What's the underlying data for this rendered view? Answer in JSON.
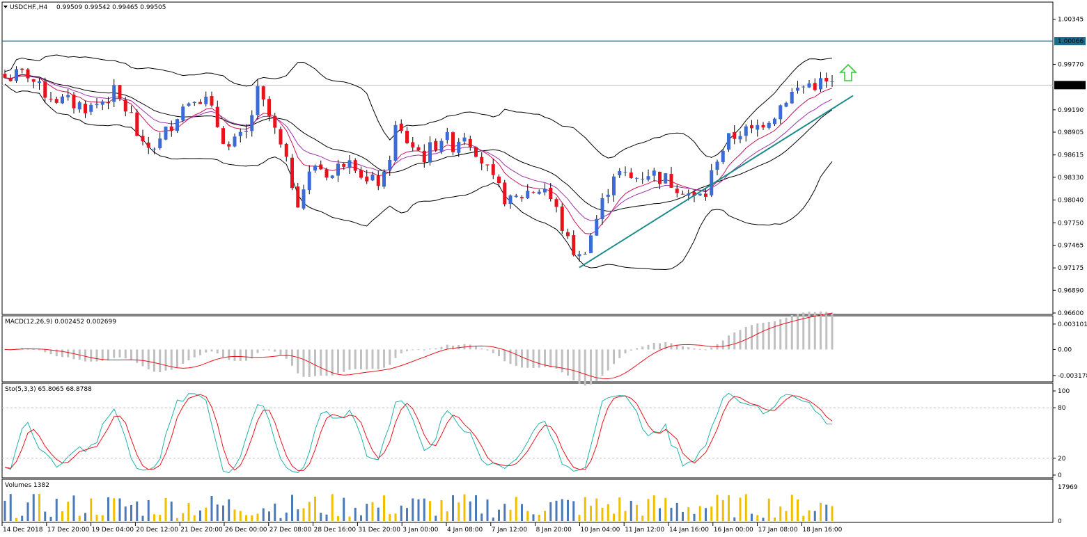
{
  "chart_data": {
    "type": "candlestick",
    "main": {
      "symbol": "USDCHF.,H4",
      "ohlc_values": "0.99509 0.99542 0.99465 0.99505",
      "price_ticks": [
        "1.00345",
        "0.99770",
        "0.99190",
        "0.98905",
        "0.98615",
        "0.98330",
        "0.98040",
        "0.97750",
        "0.97465",
        "0.97175",
        "0.96890",
        "0.96600"
      ],
      "ylim": [
        0.966,
        1.0043
      ],
      "horizontal_line": {
        "label": "1.00066",
        "price": 1.00066
      },
      "current_price": {
        "label": "0.99505",
        "price": 0.99505
      },
      "trendline": [
        {
          "bar": 0,
          "price": 0.9718
        },
        {
          "bar": 49,
          "price": 0.9937
        }
      ],
      "series": [
        {
          "name": "candles",
          "color_up": "#3a6bd6",
          "color_down": "#e8121c"
        },
        {
          "name": "",
          "color": "#000000"
        },
        {
          "name": "",
          "color": "#cc1155"
        },
        {
          "name": "",
          "color": "#9933aa"
        }
      ]
    },
    "macd": {
      "label": "MACD(12,26,9) 0.002452 0.002699",
      "ticks": [
        "0.003101",
        "0.00",
        "-0.003178"
      ],
      "ylim": [
        -0.0037,
        0.0036
      ]
    },
    "stochastic": {
      "label": "Sto(5,3,3) 65.8065 68.8788",
      "ticks": [
        "100",
        "80",
        "20",
        "0"
      ],
      "ylim": [
        0,
        100
      ]
    },
    "volumes": {
      "label": "Volumes 1382",
      "ticks": [
        "17969",
        "0"
      ],
      "ylim": [
        0,
        17969
      ]
    },
    "time_labels": [
      "14 Dec 2018",
      "17 Dec 20:00",
      "19 Dec 04:00",
      "20 Dec 12:00",
      "21 Dec 20:00",
      "26 Dec 00:00",
      "27 Dec 08:00",
      "28 Dec 16:00",
      "31 Dec 20:00",
      "3 Jan 00:00",
      "4 Jan 08:00",
      "7 Jan 12:00",
      "8 Jan 20:00",
      "10 Jan 04:00",
      "11 Jan 12:00",
      "14 Jan 16:00",
      "16 Jan 00:00",
      "17 Jan 08:00",
      "18 Jan 16:00"
    ]
  },
  "colors": {
    "up": "#3a6bd6",
    "down": "#e8121c",
    "grid_dash": "#c0c0c0",
    "hline": "#1e6a8a",
    "trend": "#1a8a8a",
    "arrow": "#33cc33",
    "macd_hist": "#c0c0c0",
    "macd_signal": "#e8121c",
    "stoch_main": "#20b2aa",
    "stoch_signal": "#e8121c",
    "vol_up": "#f0c000",
    "vol_down": "#4a7ab8"
  }
}
